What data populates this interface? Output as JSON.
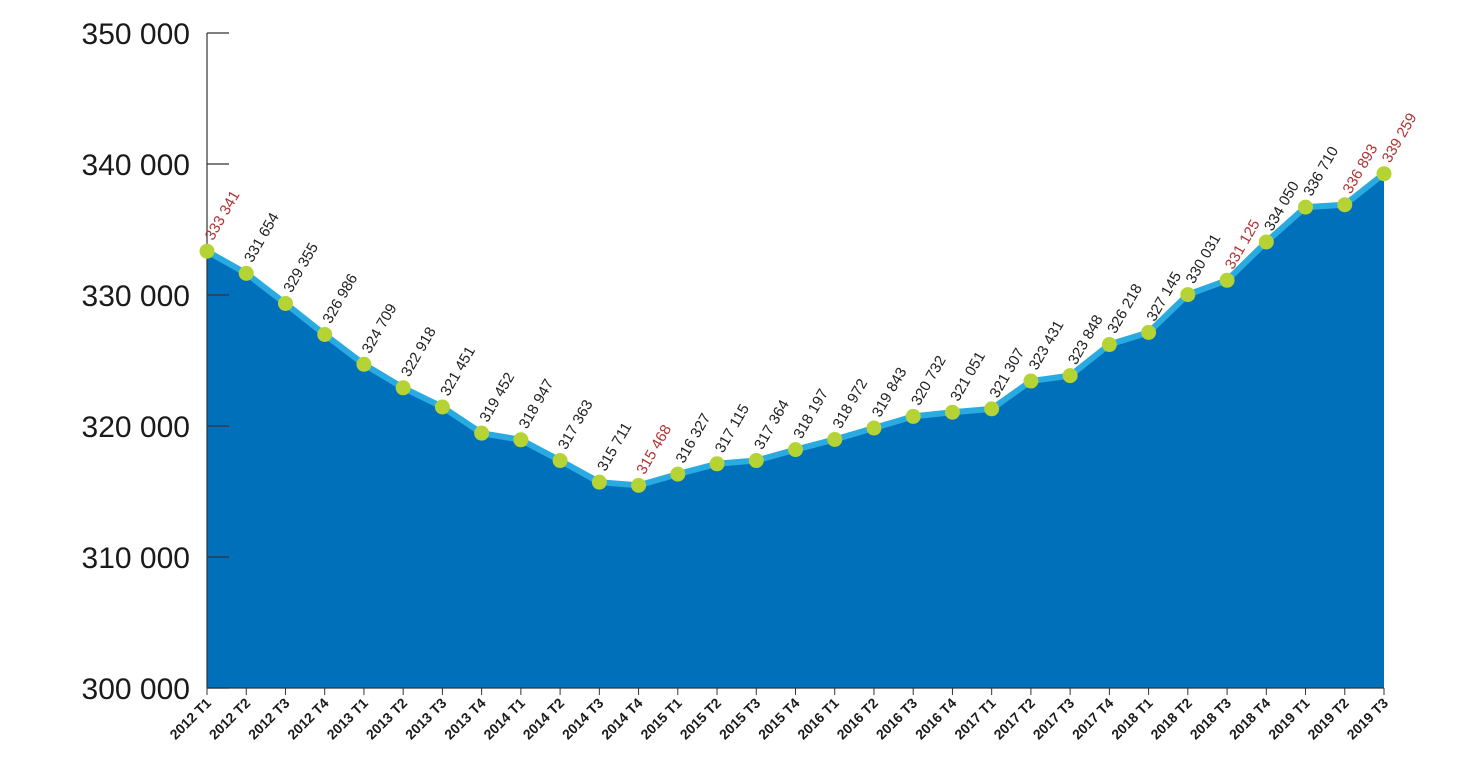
{
  "chart_data": {
    "type": "area",
    "title": "",
    "xlabel": "",
    "ylabel": "",
    "ylim": [
      300000,
      350000
    ],
    "yticks": [
      300000,
      310000,
      320000,
      330000,
      340000,
      350000
    ],
    "ytick_labels": [
      "300 000",
      "310 000",
      "320 000",
      "330 000",
      "340 000",
      "350 000"
    ],
    "grid": false,
    "legend": "none",
    "colors": {
      "area": "#0070bb",
      "line": "#29abe2",
      "marker": "#b5d334",
      "label": "#222222",
      "label_highlight": "#b03434",
      "axis": "#333333"
    },
    "categories": [
      "2012 T1",
      "2012 T2",
      "2012 T3",
      "2012 T4",
      "2013 T1",
      "2013 T2",
      "2013 T3",
      "2013 T4",
      "2014 T1",
      "2014 T2",
      "2014 T3",
      "2014 T4",
      "2015 T1",
      "2015 T2",
      "2015 T3",
      "2015 T4",
      "2016 T1",
      "2016 T2",
      "2016 T3",
      "2016 T4",
      "2017 T1",
      "2017 T2",
      "2017 T3",
      "2017 T4",
      "2018 T1",
      "2018 T2",
      "2018 T3",
      "2018 T4",
      "2019 T1",
      "2019 T2",
      "2019 T3"
    ],
    "values": [
      333341,
      331654,
      329355,
      326986,
      324709,
      322918,
      321451,
      319452,
      318947,
      317363,
      315711,
      315468,
      316327,
      317115,
      317364,
      318197,
      318972,
      319843,
      320732,
      321051,
      321307,
      323431,
      323848,
      326218,
      327145,
      330031,
      331125,
      334050,
      336710,
      336893,
      339259
    ],
    "value_labels": [
      "333 341",
      "331 654",
      "329 355",
      "326 986",
      "324 709",
      "322 918",
      "321 451",
      "319 452",
      "318 947",
      "317 363",
      "315 711",
      "315 468",
      "316 327",
      "317 115",
      "317 364",
      "318 197",
      "318 972",
      "319 843",
      "320 732",
      "321 051",
      "321 307",
      "323 431",
      "323 848",
      "326 218",
      "327 145",
      "330 031",
      "331 125",
      "334 050",
      "336 710",
      "336 893",
      "339 259"
    ],
    "highlighted": [
      0,
      11,
      26,
      29,
      30
    ]
  }
}
